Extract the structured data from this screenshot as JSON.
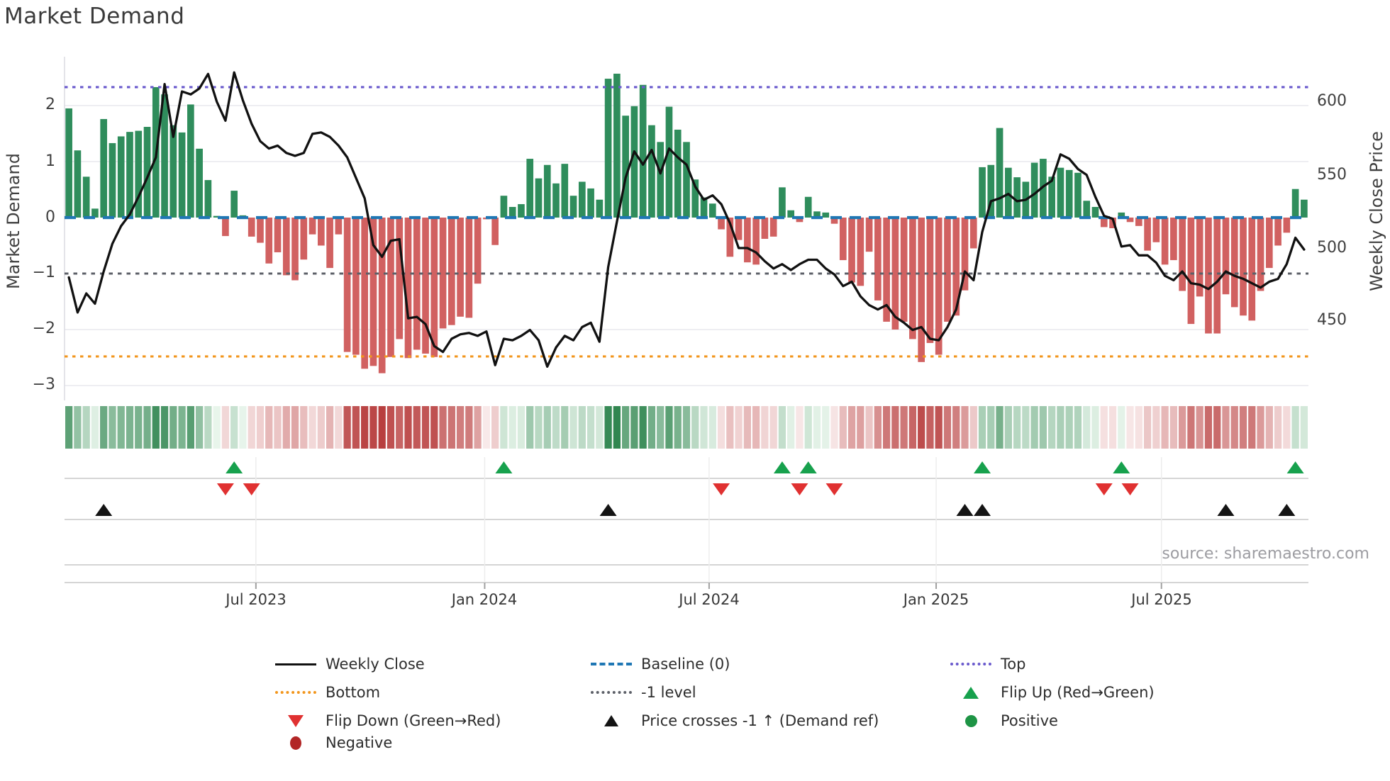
{
  "title": "Market Demand",
  "source": "source: sharemaestro.com",
  "axes": {
    "left": {
      "title": "Market Demand",
      "ticks": [
        "2",
        "1",
        "0",
        "−1",
        "−2",
        "−3"
      ]
    },
    "right": {
      "title": "Weekly Close Price",
      "ticks": [
        "600",
        "550",
        "500",
        "450"
      ]
    }
  },
  "chart_data": {
    "type": "bar+line",
    "frequency": "weekly",
    "x_ticks": [
      {
        "week": 21.5,
        "label": "Jul 2023"
      },
      {
        "week": 47.8,
        "label": "Jan 2024"
      },
      {
        "week": 73.6,
        "label": "Jul 2024"
      },
      {
        "week": 99.7,
        "label": "Jan 2025"
      },
      {
        "week": 125.6,
        "label": "Jul 2025"
      }
    ],
    "ylim_left": [
      -3.3,
      2.9
    ],
    "ylim_right": [
      396,
      631
    ],
    "grid_levels": [
      2,
      1,
      -2,
      -3
    ],
    "levels": {
      "top": 2.33,
      "baseline": 0,
      "minus1": -1,
      "bottom": -2.48
    },
    "demand": [
      1.95,
      1.2,
      0.73,
      0.16,
      1.76,
      1.33,
      1.45,
      1.53,
      1.55,
      1.62,
      2.33,
      2.2,
      1.65,
      1.52,
      2.02,
      1.23,
      0.67,
      0.03,
      -0.33,
      0.48,
      0.04,
      -0.34,
      -0.45,
      -0.82,
      -0.62,
      -1.03,
      -1.12,
      -0.75,
      -0.3,
      -0.5,
      -0.9,
      -0.3,
      -2.4,
      -2.45,
      -2.7,
      -2.65,
      -2.78,
      -2.49,
      -2.17,
      -2.51,
      -2.36,
      -2.43,
      -2.49,
      -1.98,
      -1.92,
      -1.77,
      -1.79,
      -1.18,
      -0.03,
      -0.49,
      0.39,
      0.19,
      0.24,
      1.05,
      0.7,
      0.94,
      0.61,
      0.96,
      0.39,
      0.64,
      0.52,
      0.32,
      2.48,
      2.57,
      1.82,
      1.99,
      2.37,
      1.65,
      1.35,
      1.98,
      1.57,
      1.35,
      0.68,
      0.36,
      0.25,
      -0.21,
      -0.7,
      -0.4,
      -0.8,
      -0.84,
      -0.38,
      -0.34,
      0.54,
      0.13,
      -0.08,
      0.37,
      0.11,
      0.09,
      -0.11,
      -0.76,
      -1.16,
      -1.22,
      -0.61,
      -1.48,
      -1.86,
      -2.0,
      -1.86,
      -2.17,
      -2.58,
      -2.24,
      -2.45,
      -1.86,
      -1.75,
      -1.3,
      -0.55,
      0.9,
      0.94,
      1.6,
      0.89,
      0.72,
      0.64,
      0.98,
      1.05,
      0.73,
      0.89,
      0.85,
      0.8,
      0.3,
      0.19,
      -0.17,
      -0.19,
      0.09,
      -0.08,
      -0.15,
      -0.59,
      -0.44,
      -0.84,
      -0.76,
      -1.31,
      -1.9,
      -1.41,
      -2.07,
      -2.07,
      -1.37,
      -1.6,
      -1.75,
      -1.84,
      -1.31,
      -0.9,
      -0.5,
      -0.27,
      0.51,
      0.32
    ],
    "price": [
      480,
      456,
      469,
      462,
      484,
      503,
      515,
      523,
      535,
      548,
      562,
      612,
      576,
      607,
      605,
      609,
      619,
      600,
      587,
      620,
      601,
      585,
      573,
      568,
      570,
      565,
      563,
      565,
      578,
      579,
      576,
      570,
      562,
      548,
      534,
      502,
      494,
      505,
      506,
      452,
      453,
      448,
      433,
      429,
      438,
      441,
      442,
      440,
      443,
      420,
      438,
      437,
      440,
      444,
      437,
      419,
      432,
      440,
      437,
      446,
      449,
      436,
      487,
      518,
      548,
      566,
      557,
      567,
      551,
      568,
      562,
      557,
      542,
      533,
      536,
      530,
      517,
      500,
      500,
      497,
      491,
      486,
      489,
      485,
      489,
      492,
      492,
      486,
      482,
      474,
      477,
      467,
      461,
      458,
      461,
      453,
      449,
      444,
      446,
      438,
      437,
      446,
      458,
      484,
      478,
      511,
      532,
      534,
      537,
      532,
      533,
      537,
      542,
      546,
      564,
      561,
      554,
      550,
      535,
      522,
      520,
      501,
      502,
      495,
      495,
      490,
      481,
      478,
      484,
      476,
      475,
      472,
      477,
      484,
      481,
      479,
      476,
      473,
      477,
      479,
      489,
      507,
      499
    ],
    "markers": {
      "flip_up": [
        19,
        50,
        82,
        85,
        105,
        121,
        141
      ],
      "flip_down": [
        18,
        21,
        75,
        84,
        88,
        119,
        122
      ],
      "price_cross": [
        4,
        62,
        103,
        105,
        133,
        140
      ]
    }
  },
  "colors": {
    "positive_bar": "#2f8d5c",
    "negative_bar": "#d16161",
    "price_line": "#111111",
    "baseline": "#1f77b4",
    "top": "#6a5acd",
    "bottom": "#f2961d",
    "minus1": "#5d6068",
    "flip_up": "#17a14d",
    "flip_down": "#e03131",
    "price_cross": "#141414",
    "positive_dot": "#1e9445",
    "negative_dot": "#b22626"
  },
  "legend": {
    "items": [
      {
        "label": "Weekly Close",
        "swatch": "line-black"
      },
      {
        "label": "Baseline (0)",
        "swatch": "dash-blue"
      },
      {
        "label": "Top",
        "swatch": "dot-purple"
      },
      {
        "label": "Bottom",
        "swatch": "dot-orange"
      },
      {
        "label": "-1 level",
        "swatch": "dot-gray"
      },
      {
        "label": "Flip Up (Red→Green)",
        "swatch": "tri-up-green"
      },
      {
        "label": "Flip Down (Green→Red)",
        "swatch": "tri-down-red"
      },
      {
        "label": "Price crosses -1 ↑ (Demand ref)",
        "swatch": "tri-up-black"
      },
      {
        "label": "Positive",
        "swatch": "dot-green"
      },
      {
        "label": "Negative",
        "swatch": "dot-darkred"
      }
    ]
  }
}
